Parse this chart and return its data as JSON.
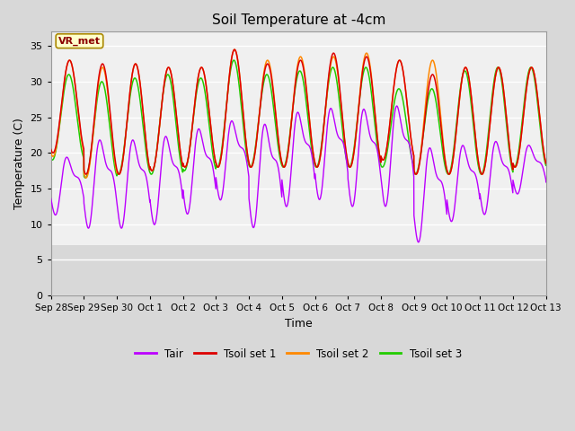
{
  "title": "Soil Temperature at -4cm",
  "xlabel": "Time",
  "ylabel": "Temperature (C)",
  "ylim": [
    0,
    37
  ],
  "yticks": [
    0,
    5,
    10,
    15,
    20,
    25,
    30,
    35
  ],
  "fig_bg": "#d8d8d8",
  "plot_bg_upper": "#f0f0f0",
  "plot_bg_lower": "#d8d8d8",
  "grid_color": "#ffffff",
  "legend_labels": [
    "Tair",
    "Tsoil set 1",
    "Tsoil set 2",
    "Tsoil set 3"
  ],
  "legend_colors": [
    "#bb00ff",
    "#dd0000",
    "#ff8800",
    "#22cc00"
  ],
  "annotation_text": "VR_met",
  "annotation_bg": "#ffffcc",
  "annotation_border": "#aa8800",
  "day_labels": [
    "Sep 28",
    "Sep 29",
    "Sep 30",
    "Oct 1",
    "Oct 2",
    "Oct 3",
    "Oct 4",
    "Oct 5",
    "Oct 6",
    "Oct 7",
    "Oct 8",
    "Oct 9",
    "Oct 10",
    "Oct 11",
    "Oct 12",
    "Oct 13"
  ],
  "tair_peaks": [
    20.5,
    23.5,
    23.5,
    24.0,
    25.0,
    26.0,
    26.0,
    27.5,
    28.0,
    28.0,
    28.5,
    22.5,
    22.5,
    23.0,
    22.0,
    21.0
  ],
  "tair_troughs": [
    11.0,
    9.0,
    9.0,
    9.5,
    11.0,
    13.0,
    9.0,
    12.0,
    13.0,
    12.0,
    12.0,
    7.0,
    10.0,
    11.0,
    14.0,
    14.0
  ],
  "tsoil1_peaks": [
    33.0,
    32.5,
    32.5,
    32.0,
    32.0,
    34.5,
    32.5,
    33.0,
    34.0,
    33.5,
    33.0,
    31.0,
    32.0,
    32.0,
    32.0,
    32.0
  ],
  "tsoil1_troughs": [
    20.0,
    17.0,
    17.0,
    17.5,
    18.0,
    18.0,
    18.0,
    18.0,
    18.0,
    18.0,
    19.0,
    17.0,
    17.0,
    17.0,
    18.0,
    18.0
  ],
  "tsoil2_peaks": [
    33.0,
    32.0,
    32.5,
    32.0,
    32.0,
    34.5,
    33.0,
    33.5,
    33.5,
    34.0,
    33.0,
    33.0,
    32.0,
    32.0,
    32.0,
    32.0
  ],
  "tsoil2_troughs": [
    19.5,
    16.5,
    17.0,
    17.5,
    18.0,
    18.0,
    18.0,
    18.0,
    18.0,
    18.0,
    19.0,
    17.0,
    17.0,
    17.0,
    18.0,
    18.0
  ],
  "tsoil3_peaks": [
    31.0,
    30.0,
    30.5,
    31.0,
    30.5,
    33.0,
    31.0,
    31.5,
    32.0,
    32.0,
    29.0,
    29.0,
    31.5,
    32.0,
    32.0,
    32.0
  ],
  "tsoil3_troughs": [
    19.0,
    16.5,
    17.0,
    17.0,
    17.5,
    18.0,
    18.0,
    18.0,
    18.0,
    18.0,
    18.0,
    17.0,
    17.0,
    17.0,
    18.0,
    18.0
  ],
  "band_lower": 7.0,
  "band_upper": 29.5
}
